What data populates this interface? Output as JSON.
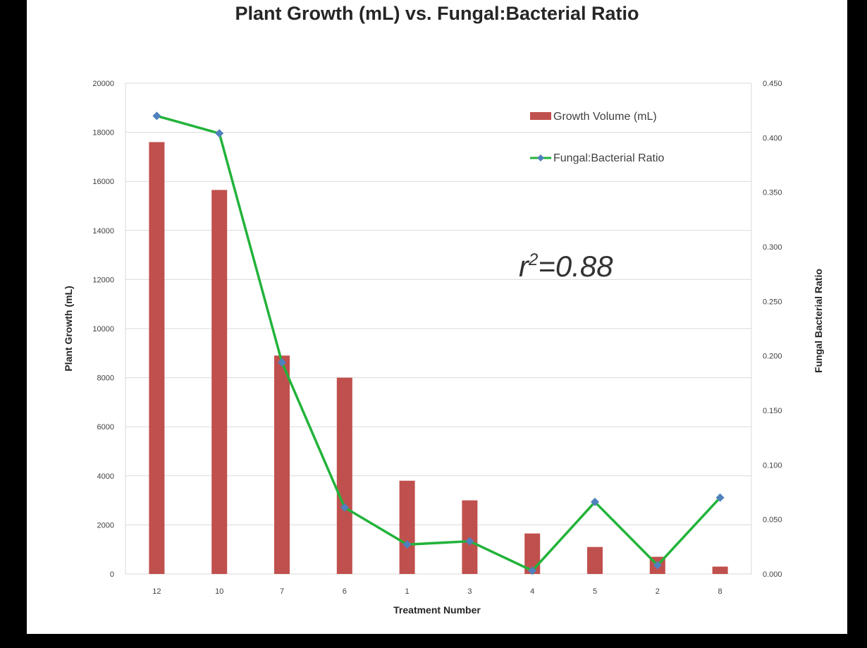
{
  "chart_data": {
    "type": "bar",
    "title": "Plant Growth  (mL) vs. Fungal:Bacterial Ratio",
    "xlabel": "Treatment Number",
    "ylabel": "Plant Growth (mL)",
    "y2label": "Fungal Bacterial Ratio",
    "categories": [
      "12",
      "10",
      "7",
      "6",
      "1",
      "3",
      "4",
      "5",
      "2",
      "8"
    ],
    "ylim": [
      0,
      20000
    ],
    "y2lim": [
      0,
      0.45
    ],
    "yticks": [
      "0",
      "2000",
      "4000",
      "6000",
      "8000",
      "10000",
      "12000",
      "14000",
      "16000",
      "18000",
      "20000"
    ],
    "y2ticks": [
      "0.000",
      "0.050",
      "0.100",
      "0.150",
      "0.200",
      "0.250",
      "0.300",
      "0.350",
      "0.400",
      "0.450"
    ],
    "grid": true,
    "legend_position": "top-right",
    "series": [
      {
        "name": "Growth Volume (mL)",
        "type": "bar",
        "axis": "left",
        "color": "#c0504d",
        "values": [
          17600,
          15650,
          8900,
          8000,
          3800,
          3000,
          1650,
          1100,
          700,
          300
        ]
      },
      {
        "name": "Fungal:Bacterial Ratio",
        "type": "line",
        "axis": "right",
        "color": "#22b33a",
        "marker_color": "#4f81bd",
        "values": [
          0.42,
          0.404,
          0.194,
          0.061,
          0.027,
          0.03,
          0.003,
          0.066,
          0.008,
          0.07
        ]
      }
    ],
    "annotation_prefix": "r",
    "annotation_sup": "2",
    "annotation_value": "=0.88"
  }
}
